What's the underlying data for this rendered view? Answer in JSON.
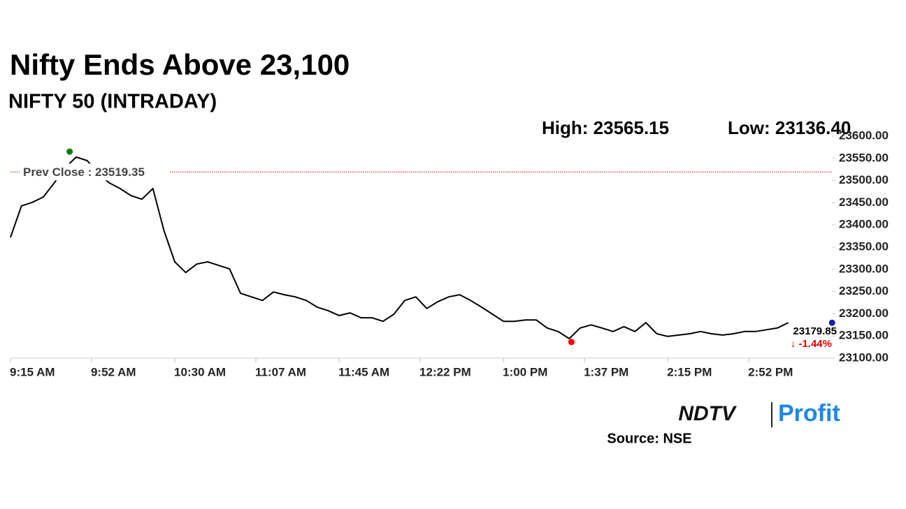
{
  "chart_data": {
    "type": "line",
    "title": "Nifty Ends Above 23,100",
    "subtitle": "NIFTY 50 (INTRADAY)",
    "x": [
      "9:15 AM",
      "9:20 AM",
      "9:25 AM",
      "9:30 AM",
      "9:35 AM",
      "9:40 AM",
      "9:45 AM",
      "9:50 AM",
      "9:55 AM",
      "10:00 AM",
      "10:05 AM",
      "10:10 AM",
      "10:15 AM",
      "10:20 AM",
      "10:25 AM",
      "10:30 AM",
      "10:35 AM",
      "10:40 AM",
      "10:45 AM",
      "10:50 AM",
      "10:55 AM",
      "11:00 AM",
      "11:05 AM",
      "11:10 AM",
      "11:15 AM",
      "11:20 AM",
      "11:25 AM",
      "11:30 AM",
      "11:35 AM",
      "11:40 AM",
      "11:45 AM",
      "11:50 AM",
      "11:55 AM",
      "12:00 PM",
      "12:05 PM",
      "12:10 PM",
      "12:15 PM",
      "12:20 PM",
      "12:25 PM",
      "12:30 PM",
      "12:35 PM",
      "12:40 PM",
      "12:45 PM",
      "12:50 PM",
      "12:55 PM",
      "1:00 PM",
      "1:05 PM",
      "1:10 PM",
      "1:15 PM",
      "1:20 PM",
      "1:25 PM",
      "1:30 PM",
      "1:35 PM",
      "1:40 PM",
      "1:45 PM",
      "1:50 PM",
      "1:55 PM",
      "2:00 PM",
      "2:05 PM",
      "2:10 PM",
      "2:15 PM",
      "2:20 PM",
      "2:25 PM",
      "2:30 PM",
      "2:35 PM",
      "2:40 PM",
      "2:45 PM",
      "2:50 PM",
      "2:55 PM",
      "3:00 PM",
      "3:05 PM",
      "3:10 PM"
    ],
    "series": [
      {
        "color": "#000000",
        "values": [
          23372,
          23443,
          23451,
          23463,
          23495,
          23529,
          23553,
          23545,
          23517,
          23495,
          23482,
          23466,
          23458,
          23482,
          23388,
          23317,
          23293,
          23312,
          23317,
          23309,
          23301,
          23246,
          23238,
          23230,
          23249,
          23243,
          23238,
          23230,
          23215,
          23207,
          23196,
          23202,
          23191,
          23191,
          23183,
          23199,
          23230,
          23238,
          23212,
          23227,
          23238,
          23243,
          23230,
          23215,
          23199,
          23183,
          23183,
          23186,
          23186,
          23168,
          23160,
          23144,
          23168,
          23175,
          23168,
          23160,
          23171,
          23160,
          23180,
          23155,
          23149,
          23152,
          23155,
          23160,
          23155,
          23152,
          23155,
          23160,
          23160,
          23164,
          23168,
          23179.85
        ]
      }
    ],
    "xticks": [
      "9:15 AM",
      "9:52 AM",
      "10:30 AM",
      "11:07 AM",
      "11:45 AM",
      "12:22 PM",
      "1:00 PM",
      "1:37 PM",
      "2:15 PM",
      "2:52 PM"
    ],
    "ylim": [
      23100,
      23600
    ],
    "yticks": [
      {
        "value": 23100,
        "label": "23100.00"
      },
      {
        "value": 23150,
        "label": "23150.00"
      },
      {
        "value": 23200,
        "label": "23200.00"
      },
      {
        "value": 23250,
        "label": "23250.00"
      },
      {
        "value": 23300,
        "label": "23300.00"
      },
      {
        "value": 23350,
        "label": "23350.00"
      },
      {
        "value": 23400,
        "label": "23400.00"
      },
      {
        "value": 23450,
        "label": "23450.00"
      },
      {
        "value": 23500,
        "label": "23500.00"
      },
      {
        "value": 23550,
        "label": "23550.00"
      },
      {
        "value": 23600,
        "label": "23600.00"
      }
    ],
    "grid": false,
    "high": {
      "label": "High: 23565.15",
      "value": 23565.15,
      "x": "9:42 AM",
      "color": "#008000"
    },
    "low": {
      "label": "Low: 23136.40",
      "value": 23136.4,
      "x": "1:31 PM",
      "color": "#ff0000"
    },
    "prev_close": {
      "label": "Prev Close : 23519.35",
      "value": 23519.35,
      "color": "#cc0000"
    },
    "last": {
      "label": "23179.85",
      "value": 23179.85,
      "x": "3:30 PM",
      "color": "#1a1aa8"
    },
    "change_label": "↓ -1.44%"
  },
  "footer": {
    "logo_left": "NDTV",
    "logo_right": "Profit",
    "source": "Source: NSE"
  }
}
